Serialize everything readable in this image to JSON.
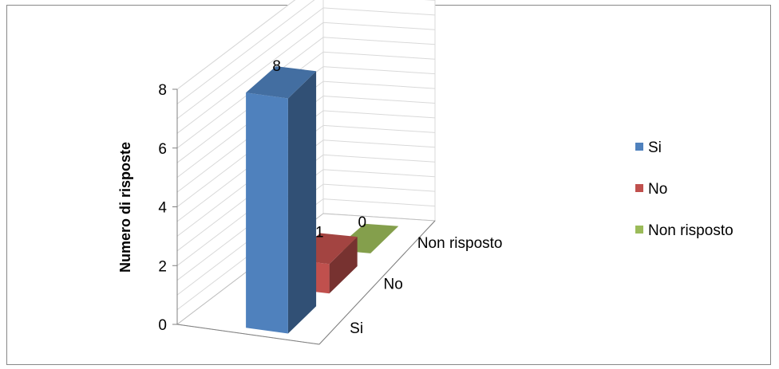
{
  "chart_data": {
    "type": "bar",
    "style": "3d-column",
    "categories": [
      "Si",
      "No",
      "Non risposto"
    ],
    "values": [
      8,
      1,
      0
    ],
    "data_labels": [
      "8",
      "1",
      "0"
    ],
    "ylabel": "Numero di risposte",
    "xlabel": "",
    "ylim": [
      0,
      8
    ],
    "yticks": [
      "0",
      "2",
      "4",
      "6",
      "8"
    ],
    "grid": true,
    "legend": {
      "position": "right",
      "entries": [
        "Si",
        "No",
        "Non risposto"
      ]
    },
    "colors": {
      "Si": "#4F81BD",
      "No": "#C0504D",
      "Non risposto": "#9BBB59"
    }
  }
}
